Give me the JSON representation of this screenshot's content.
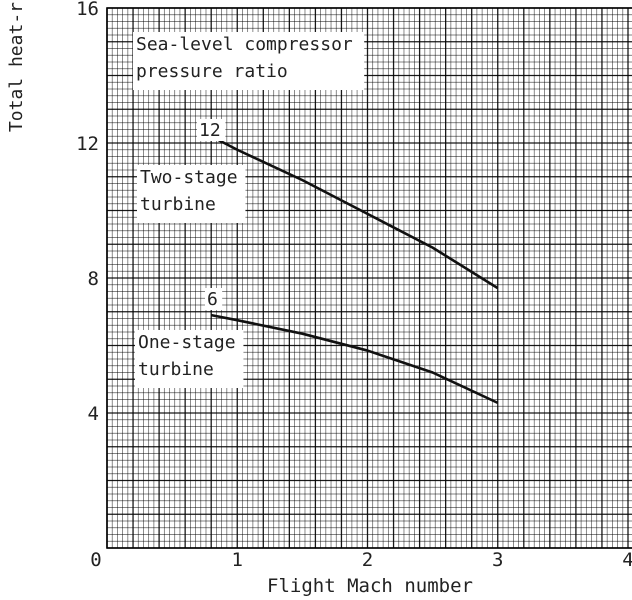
{
  "chart_data": {
    "type": "line",
    "xlabel": "Flight Mach number",
    "ylabel": "Total heat-r",
    "xlim": [
      0,
      4
    ],
    "ylim": [
      0,
      16
    ],
    "x_ticks": [
      "0",
      "1",
      "2",
      "3",
      "4"
    ],
    "y_ticks": [
      "4",
      "8",
      "12",
      "16"
    ],
    "grid": true,
    "series": [
      {
        "name": "12",
        "x": [
          0.8,
          1.0,
          1.5,
          2.0,
          2.5,
          3.0
        ],
        "y": [
          12.2,
          11.8,
          10.9,
          9.9,
          8.9,
          7.7
        ]
      },
      {
        "name": "6",
        "x": [
          0.8,
          1.0,
          1.5,
          2.0,
          2.5,
          3.0
        ],
        "y": [
          6.9,
          6.75,
          6.35,
          5.85,
          5.2,
          4.3
        ]
      }
    ],
    "annotations": {
      "legend_title": [
        "Sea-level compressor",
        "pressure ratio"
      ],
      "two_stage": [
        "Two-stage",
        "turbine"
      ],
      "one_stage": [
        "One-stage",
        "turbine"
      ]
    }
  }
}
